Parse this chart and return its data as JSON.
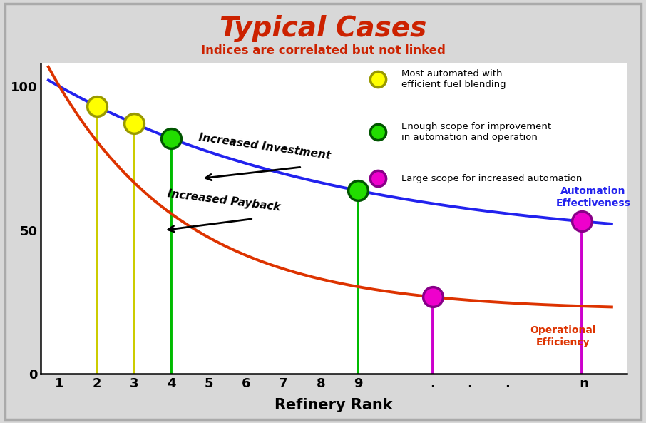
{
  "title": "Typical Cases",
  "subtitle": "Indices are correlated but not linked",
  "title_color": "#CC2200",
  "subtitle_color": "#CC2200",
  "xlabel": "Refinery Rank",
  "background_color": "#d8d8d8",
  "plot_bg_color": "#ffffff",
  "blue_curve_label": "Automation\nEffectiveness",
  "orange_curve_label": "Operational\nEfficiency",
  "blue_color": "#2222EE",
  "orange_color": "#DD3300",
  "blue_a": 56,
  "blue_b": 0.13,
  "blue_c": 44,
  "orange_a": 78,
  "orange_b": 0.28,
  "orange_c": 22,
  "yellow_line_color": "#CCCC00",
  "green_line_color": "#00BB00",
  "magenta_line_color": "#CC00CC",
  "yellow_color": "#FFFF00",
  "yellow_edge": "#999900",
  "green_color": "#22DD00",
  "green_edge": "#005500",
  "magenta_color": "#EE00CC",
  "magenta_edge": "#880088",
  "arrow1_text": "Increased Investment",
  "arrow2_text": "Increased Payback",
  "legend_items": [
    {
      "color": "#FFFF00",
      "edgecolor": "#999900",
      "text": "Most automated with\nefficient fuel blending"
    },
    {
      "color": "#22DD00",
      "edgecolor": "#005500",
      "text": "Enough scope for improvement\nin automation and operation"
    },
    {
      "color": "#EE00CC",
      "edgecolor": "#880088",
      "text": "Large scope for increased automation"
    }
  ]
}
